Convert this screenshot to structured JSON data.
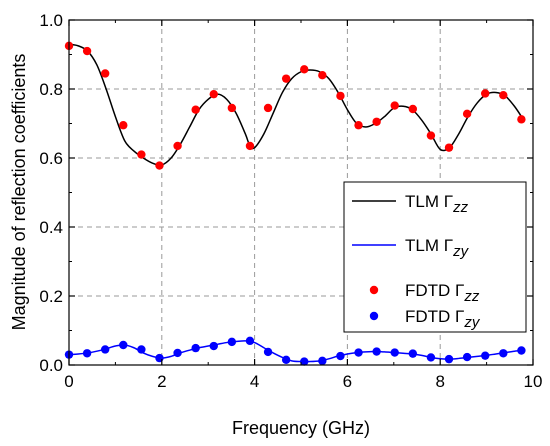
{
  "chart_data": {
    "type": "line",
    "xlabel": "Frequency (GHz)",
    "ylabel": "Magnitude of reflection coefficients",
    "xlim": [
      0,
      10
    ],
    "ylim": [
      0,
      1.0
    ],
    "x_ticks": [
      "0",
      "2",
      "4",
      "6",
      "8",
      "10"
    ],
    "y_ticks": [
      "0.0",
      "0.2",
      "0.4",
      "0.6",
      "0.8",
      "1.0"
    ],
    "grid": true,
    "legend_position": "bottom-right",
    "series": [
      {
        "name": "TLM Γzz",
        "legend": {
          "prefix": "TLM Γ",
          "sub": "zz"
        },
        "kind": "line",
        "color": "#000000",
        "x": [
          0,
          0.2,
          0.4,
          0.6,
          0.8,
          1.0,
          1.2,
          1.4,
          1.6,
          1.8,
          2.0,
          2.2,
          2.4,
          2.6,
          2.8,
          3.0,
          3.2,
          3.4,
          3.6,
          3.8,
          3.9,
          4.0,
          4.2,
          4.4,
          4.6,
          4.8,
          5.0,
          5.2,
          5.4,
          5.6,
          5.8,
          6.0,
          6.2,
          6.4,
          6.6,
          6.8,
          7.0,
          7.2,
          7.4,
          7.6,
          7.8,
          8.0,
          8.2,
          8.4,
          8.6,
          8.8,
          9.0,
          9.2,
          9.4,
          9.6,
          9.8
        ],
        "y": [
          0.93,
          0.925,
          0.91,
          0.87,
          0.8,
          0.72,
          0.65,
          0.62,
          0.6,
          0.585,
          0.58,
          0.6,
          0.64,
          0.69,
          0.74,
          0.77,
          0.785,
          0.77,
          0.73,
          0.67,
          0.635,
          0.63,
          0.67,
          0.73,
          0.79,
          0.83,
          0.85,
          0.855,
          0.85,
          0.83,
          0.79,
          0.74,
          0.7,
          0.69,
          0.7,
          0.72,
          0.745,
          0.75,
          0.74,
          0.71,
          0.67,
          0.625,
          0.63,
          0.67,
          0.72,
          0.76,
          0.785,
          0.79,
          0.78,
          0.75,
          0.71
        ]
      },
      {
        "name": "TLM Γzy",
        "legend": {
          "prefix": "TLM Γ",
          "sub": "zy"
        },
        "kind": "line",
        "color": "#0000ff",
        "x": [
          0,
          0.2,
          0.4,
          0.6,
          0.8,
          1.0,
          1.2,
          1.4,
          1.6,
          1.8,
          2.0,
          2.2,
          2.4,
          2.6,
          2.8,
          3.0,
          3.2,
          3.4,
          3.6,
          3.8,
          4.0,
          4.2,
          4.4,
          4.6,
          4.8,
          5.0,
          5.2,
          5.4,
          5.6,
          5.8,
          6.0,
          6.2,
          6.4,
          6.6,
          6.8,
          7.0,
          7.2,
          7.4,
          7.6,
          7.8,
          8.0,
          8.2,
          8.4,
          8.6,
          8.8,
          9.0,
          9.2,
          9.4,
          9.6,
          9.8
        ],
        "y": [
          0.03,
          0.032,
          0.035,
          0.04,
          0.047,
          0.055,
          0.058,
          0.05,
          0.035,
          0.025,
          0.02,
          0.025,
          0.035,
          0.043,
          0.05,
          0.055,
          0.06,
          0.065,
          0.068,
          0.07,
          0.065,
          0.05,
          0.035,
          0.022,
          0.012,
          0.01,
          0.01,
          0.012,
          0.018,
          0.026,
          0.032,
          0.036,
          0.038,
          0.039,
          0.038,
          0.036,
          0.034,
          0.032,
          0.028,
          0.022,
          0.018,
          0.017,
          0.019,
          0.022,
          0.025,
          0.028,
          0.032,
          0.036,
          0.04,
          0.042
        ]
      },
      {
        "name": "FDTD Γzz",
        "legend": {
          "prefix": "FDTD Γ",
          "sub": "zz"
        },
        "kind": "scatter",
        "color": "#ff0000",
        "x": [
          0,
          0.39,
          0.78,
          1.17,
          1.56,
          1.95,
          2.34,
          2.73,
          3.12,
          3.51,
          3.9,
          4.29,
          4.68,
          5.07,
          5.46,
          5.85,
          6.24,
          6.63,
          7.02,
          7.41,
          7.8,
          8.19,
          8.58,
          8.97,
          9.36,
          9.75
        ],
        "y": [
          0.925,
          0.91,
          0.845,
          0.695,
          0.61,
          0.578,
          0.635,
          0.74,
          0.785,
          0.745,
          0.635,
          0.745,
          0.83,
          0.857,
          0.84,
          0.78,
          0.695,
          0.705,
          0.752,
          0.742,
          0.665,
          0.63,
          0.728,
          0.787,
          0.782,
          0.712
        ]
      },
      {
        "name": "FDTD Γzy",
        "legend": {
          "prefix": "FDTD Γ",
          "sub": "zy"
        },
        "kind": "scatter",
        "color": "#0000ff",
        "x": [
          0,
          0.39,
          0.78,
          1.17,
          1.56,
          1.95,
          2.34,
          2.73,
          3.12,
          3.51,
          3.9,
          4.29,
          4.68,
          5.07,
          5.46,
          5.85,
          6.24,
          6.63,
          7.02,
          7.41,
          7.8,
          8.19,
          8.58,
          8.97,
          9.36,
          9.75
        ],
        "y": [
          0.03,
          0.034,
          0.045,
          0.058,
          0.045,
          0.02,
          0.035,
          0.049,
          0.055,
          0.067,
          0.07,
          0.038,
          0.015,
          0.01,
          0.012,
          0.026,
          0.036,
          0.039,
          0.036,
          0.033,
          0.022,
          0.017,
          0.023,
          0.027,
          0.034,
          0.042
        ]
      }
    ]
  }
}
